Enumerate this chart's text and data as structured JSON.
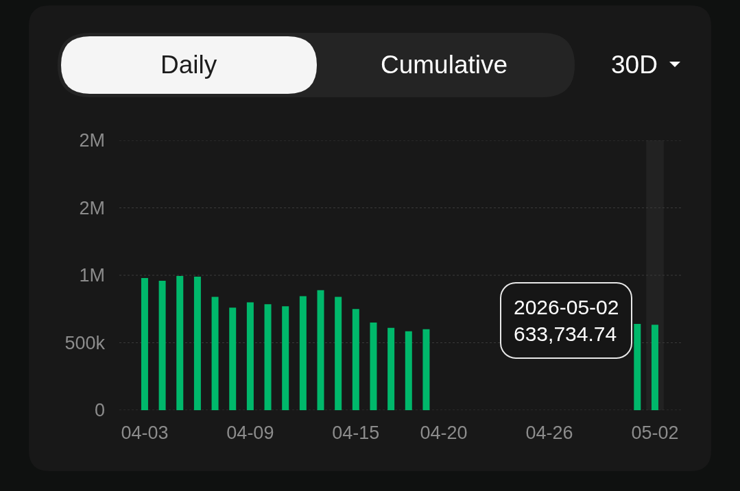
{
  "chart_data": {
    "type": "bar",
    "categories": [
      "04-03",
      null,
      null,
      null,
      null,
      null,
      "04-09",
      null,
      null,
      null,
      null,
      null,
      "04-15",
      null,
      null,
      null,
      null,
      "04-20",
      null,
      null,
      null,
      null,
      null,
      "04-26",
      null,
      null,
      null,
      null,
      null,
      "05-02"
    ],
    "values": [
      980000,
      960000,
      995000,
      990000,
      840000,
      760000,
      800000,
      785000,
      770000,
      845000,
      890000,
      840000,
      750000,
      650000,
      610000,
      585000,
      600000,
      null,
      null,
      null,
      null,
      null,
      null,
      null,
      null,
      null,
      null,
      null,
      640000,
      633734.74
    ],
    "color": "#00b86b",
    "ylim": [
      0,
      2000000
    ],
    "yticks": [
      0,
      {
        "value": 500000,
        "label": "500k"
      },
      {
        "value": 1000000,
        "label": "1M"
      },
      {
        "value": 1500000,
        "label": "2M"
      },
      {
        "value": 2000000,
        "label": "2M"
      }
    ],
    "grid": "y",
    "bands": [
      {
        "axis": "x",
        "from": "05-02",
        "to": "05-02",
        "color": "#222222"
      }
    ],
    "annotations": [
      "Daily",
      "Cumulative",
      "30D",
      {
        "text": "2026-05-02\n633,734.74",
        "x": "05-02",
        "y": 633734.74
      }
    ]
  }
}
